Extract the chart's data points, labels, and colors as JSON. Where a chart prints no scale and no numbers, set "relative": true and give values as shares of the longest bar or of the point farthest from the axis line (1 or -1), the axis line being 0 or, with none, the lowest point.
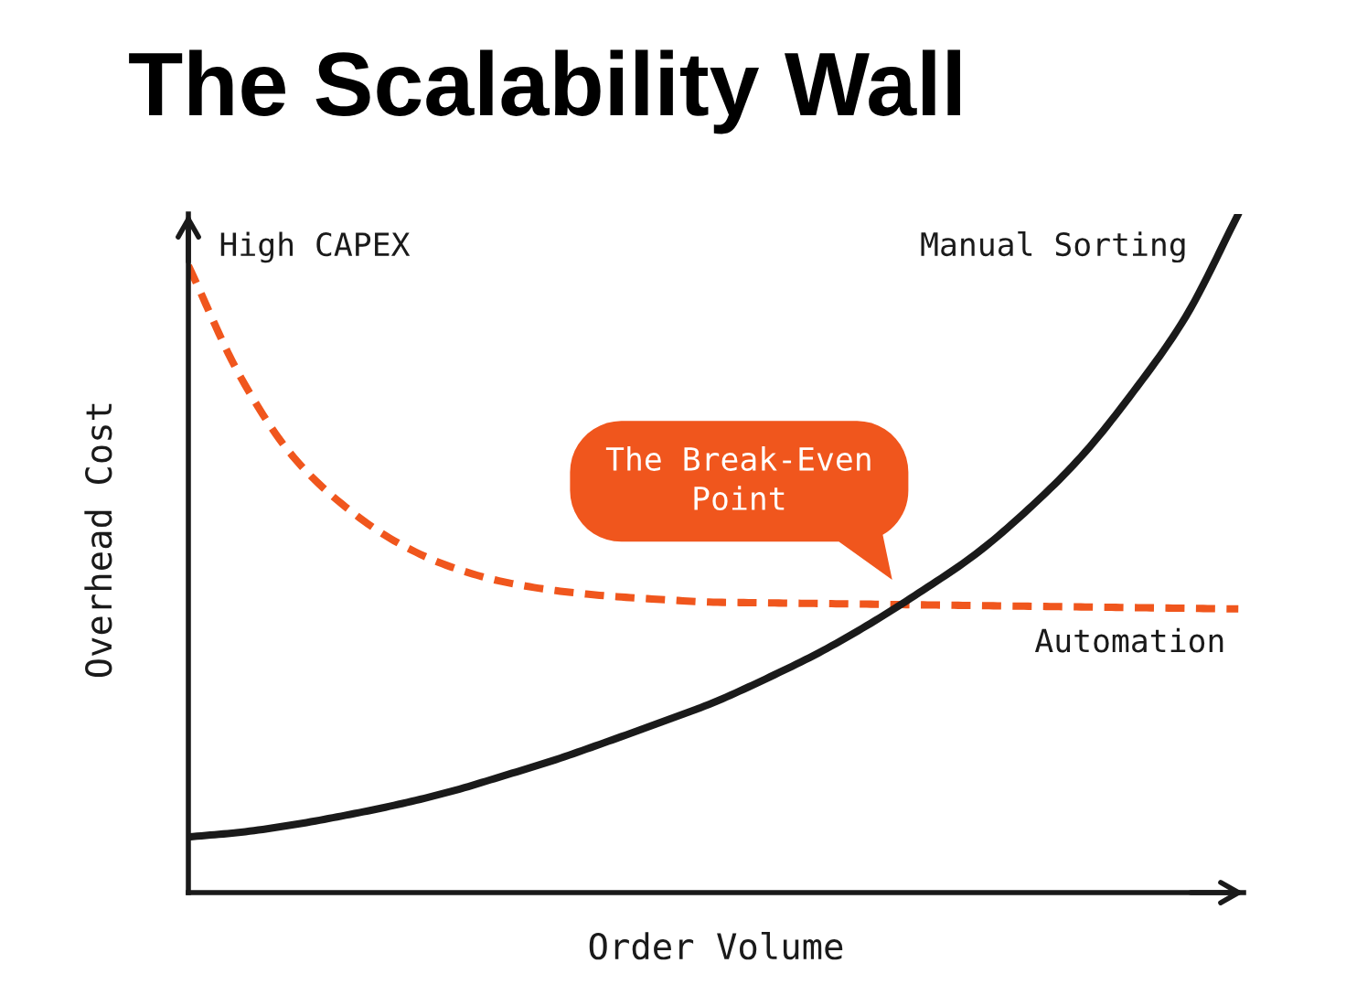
{
  "chart_data": {
    "type": "line",
    "title": "The Scalability Wall",
    "xlabel": "Order Volume",
    "ylabel": "Overhead Cost",
    "relative": true,
    "categories": [
      null,
      null,
      null,
      null,
      null,
      null,
      null,
      null,
      null,
      null,
      null,
      null,
      null,
      null,
      null,
      null,
      null,
      null,
      null,
      null,
      null
    ],
    "series": [
      {
        "name": "Automation",
        "color": "#f0561d",
        "line_style": "dashed",
        "values": [
          0.924,
          0.759,
          0.642,
          0.568,
          0.515,
          0.48,
          0.458,
          0.445,
          0.437,
          0.432,
          0.428,
          0.427,
          0.426,
          0.425,
          0.424,
          0.423,
          0.422,
          0.421,
          0.42,
          0.419,
          0.418
        ]
      },
      {
        "name": "Manual Sorting",
        "color": "#1a1a1a",
        "line_style": "solid",
        "values": [
          0.082,
          0.089,
          0.1,
          0.114,
          0.13,
          0.149,
          0.172,
          0.196,
          0.223,
          0.251,
          0.28,
          0.315,
          0.353,
          0.397,
          0.446,
          0.499,
          0.565,
          0.642,
          0.738,
          0.849,
          1
        ]
      }
    ],
    "annotations": [
      "High CAPEX",
      "The Break-Even Point"
    ]
  }
}
